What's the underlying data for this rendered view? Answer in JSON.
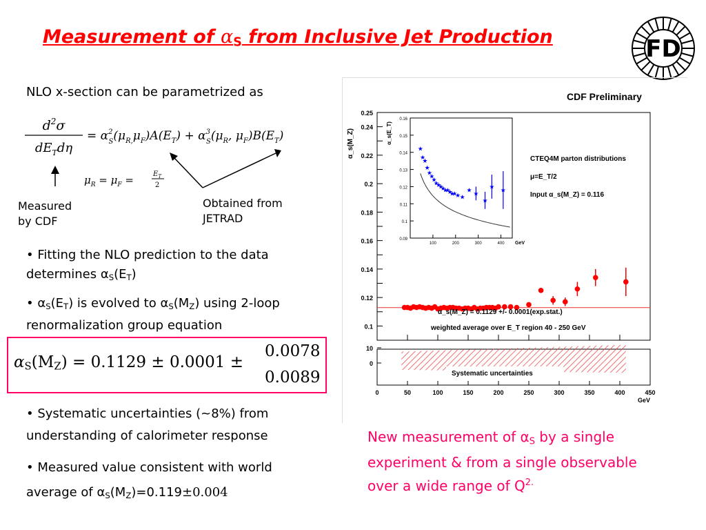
{
  "slide": {
    "title_pre": "Measurement of ",
    "title_alpha": "α",
    "title_alpha_sub": "S",
    "title_post": " from Inclusive Jet Production",
    "logo_text": "FD"
  },
  "left": {
    "intro": "NLO x-section can be parametrized as",
    "eq1_lhs_num": "d²σ",
    "eq1_lhs_den": "dE_T dη",
    "eq1_rhs": "= α²_S(μ_R, μ_F)A(E_T) + α³_S(μ_R, μ_F)B(E_T)",
    "eq2": "μ_R = μ_F = E_T/2",
    "measured_label_1": "Measured",
    "measured_label_2": "by CDF",
    "jetrad_label_1": "Obtained from",
    "jetrad_label_2": "JETRAD",
    "bullet1_a": "• Fitting the NLO prediction to the data",
    "bullet1_b": "determines α",
    "bullet1_b_sub": "S",
    "bullet1_b_tail": "(E",
    "bullet1_b_sub2": "T",
    "bullet1_b_end": ")",
    "bullet2_a": "• α",
    "bullet2_a_sub": "S",
    "bullet2_a_mid": "(E",
    "bullet2_a_sub2": "T",
    "bullet2_a_mid2": ") is evolved to α",
    "bullet2_a_sub3": "S",
    "bullet2_a_mid3": "(M",
    "bullet2_a_sub4": "Z",
    "bullet2_a_end": ") using  2-loop",
    "bullet2_b": "renormalization group equation",
    "result_main": "α",
    "result_main_sub": "S",
    "result_arg": "(M",
    "result_arg_sub": "Z",
    "result_value": ") = 0.1129 ± 0.0001 ±",
    "result_err_up": "0.0078",
    "result_err_down": "0.0089",
    "bullet3_a": "• Systematic uncertainties (~8%) from",
    "bullet3_b": "understanding of calorimeter response",
    "bullet4_a": "• Measured value consistent with world",
    "bullet4_b": "average of α",
    "bullet4_b_sub": "S",
    "bullet4_b_mid": "(M",
    "bullet4_b_sub2": "Z",
    "bullet4_b_val": ")=0.119",
    "bullet4_b_err": "±0.004"
  },
  "note": {
    "line1_a": "New measurement of α",
    "line1_sub": "S",
    "line1_b": " by a single",
    "line2": "experiment & from a single observable",
    "line3_a": "over a wide range of Q",
    "line3_sup": "2."
  },
  "colors": {
    "title": "#ff0000",
    "accent_pink": "#ff0066",
    "points": "#ff0000",
    "inset_points": "#0000ff"
  },
  "chart_data": [
    {
      "type": "scatter",
      "title": "CDF Preliminary",
      "ylabel": "α_s(M_Z)",
      "xlabel": "",
      "xlim": [
        0,
        450
      ],
      "ylim": [
        0.09,
        0.25
      ],
      "xticks": [
        0,
        50,
        100,
        150,
        200,
        250,
        300,
        350,
        400,
        450
      ],
      "xtick_labels": [
        "",
        "",
        "",
        "",
        "",
        "",
        "",
        "",
        "",
        ""
      ],
      "yticks": [
        0.1,
        0.11,
        0.12,
        0.13,
        0.14,
        0.15,
        0.16,
        0.17,
        0.18,
        0.19,
        0.2,
        0.21,
        0.22,
        0.23,
        0.24,
        0.25
      ],
      "ytick_labels": [
        "0.1",
        "0.11",
        "0.12",
        "0.13",
        "0.14",
        "0.15",
        "0.16",
        "0.17",
        "0.18",
        "0.19",
        "0.2",
        "0.21",
        "0.22",
        "0.23",
        "0.24",
        "0.25"
      ],
      "annotations": [
        "CTEQ4M parton distributions",
        "μ=E_T/2",
        "Input α_s(M_Z) = 0.116",
        "α_s(M_Z) = 0.1129 +/- 0.0001(exp.stat.)",
        "weighted average over E_T region 40 - 250 GeV"
      ],
      "reference_line": 0.1129,
      "series": [
        {
          "x": [
            45,
            50,
            55,
            60,
            65,
            70,
            75,
            80,
            85,
            90,
            95,
            100,
            105,
            110,
            115,
            120,
            125,
            130,
            135,
            140,
            145,
            150,
            155,
            160,
            165,
            170,
            175,
            180,
            185,
            190,
            195,
            200,
            210,
            220,
            230,
            250,
            270,
            290,
            310,
            330,
            360,
            410
          ],
          "y": [
            0.113,
            0.113,
            0.1125,
            0.1135,
            0.113,
            0.1135,
            0.113,
            0.1125,
            0.113,
            0.1125,
            0.1135,
            0.112,
            0.1125,
            0.113,
            0.1125,
            0.113,
            0.113,
            0.1125,
            0.1125,
            0.112,
            0.1125,
            0.1125,
            0.112,
            0.113,
            0.112,
            0.1125,
            0.1125,
            0.113,
            0.113,
            0.113,
            0.1125,
            0.1135,
            0.1135,
            0.1135,
            0.113,
            0.115,
            0.125,
            0.118,
            0.117,
            0.126,
            0.134,
            0.131
          ],
          "err": [
            0,
            0,
            0,
            0,
            0,
            0,
            0,
            0,
            0,
            0,
            0,
            0,
            0,
            0,
            0,
            0,
            0,
            0,
            0,
            0,
            0,
            0,
            0,
            0,
            0,
            0,
            0,
            0,
            0,
            0,
            0,
            0,
            0,
            0,
            0,
            0,
            0,
            0.003,
            0.003,
            0.005,
            0.006,
            0.01
          ]
        }
      ]
    },
    {
      "type": "scatter",
      "title": "",
      "ylabel": "α_s(E_T)",
      "xlabel": "GeV",
      "xlim": [
        0,
        450
      ],
      "ylim": [
        0.09,
        0.16
      ],
      "yticks": [
        0.09,
        0.1,
        0.11,
        0.12,
        0.13,
        0.14,
        0.15,
        0.16
      ],
      "ytick_labels": [
        "0.09",
        "0.1",
        "0.11",
        "0.12",
        "0.13",
        "0.14",
        "0.15",
        "0.16"
      ],
      "xticks": [
        100,
        200,
        300,
        400
      ],
      "xtick_labels": [
        "100",
        "200",
        "300",
        "400"
      ],
      "series": [
        {
          "x": [
            45,
            55,
            65,
            75,
            85,
            95,
            105,
            115,
            125,
            135,
            145,
            155,
            165,
            175,
            185,
            195,
            210,
            230,
            260,
            290,
            330,
            360,
            410
          ],
          "y": [
            0.142,
            0.137,
            0.135,
            0.131,
            0.128,
            0.126,
            0.124,
            0.122,
            0.121,
            0.12,
            0.119,
            0.118,
            0.118,
            0.117,
            0.116,
            0.116,
            0.115,
            0.114,
            0.118,
            0.116,
            0.112,
            0.12,
            0.118
          ],
          "err": [
            0,
            0,
            0,
            0,
            0,
            0,
            0,
            0,
            0,
            0,
            0,
            0,
            0,
            0,
            0,
            0,
            0,
            0,
            0,
            0.004,
            0.005,
            0.007,
            0.011
          ]
        }
      ]
    },
    {
      "type": "area",
      "title": "Systematic uncertainties",
      "xlabel": "GeV",
      "xlim": [
        0,
        450
      ],
      "ylim": [
        0,
        14
      ],
      "xticks": [
        0,
        50,
        100,
        150,
        200,
        250,
        300,
        350,
        400,
        450
      ],
      "xtick_labels": [
        "0",
        "50",
        "100",
        "150",
        "200",
        "250",
        "300",
        "350",
        "400",
        "450"
      ],
      "yticks": [
        0,
        10
      ],
      "ytick_labels": [
        "0",
        "10"
      ],
      "x": [
        40,
        410
      ],
      "upper": [
        7.5,
        12
      ],
      "lower": [
        -4.5,
        -6.5
      ]
    }
  ]
}
